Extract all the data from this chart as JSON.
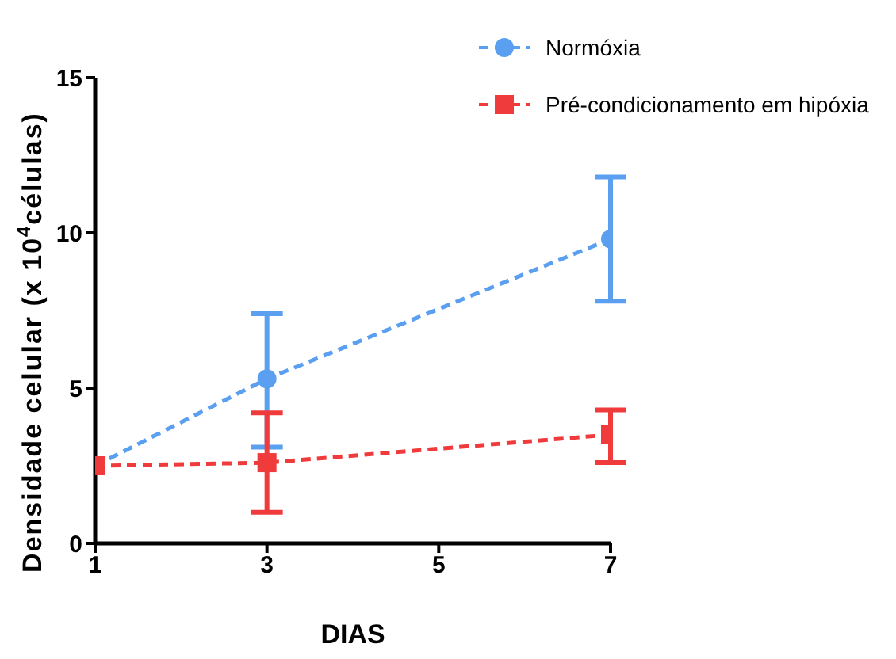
{
  "chart_data": {
    "type": "line",
    "xlabel": "DIAS",
    "ylabel": "Densidade celular (x 10$^{4}$células)",
    "x": [
      1,
      3,
      7
    ],
    "series": [
      {
        "name": "Normóxia",
        "color": "#5b9ff0",
        "marker": "circle",
        "values": [
          2.5,
          5.3,
          9.8
        ],
        "errors": [
          null,
          [
            3.1,
            7.4
          ],
          [
            7.8,
            11.8
          ]
        ]
      },
      {
        "name": "Pré-condicionamento em hipóxia",
        "color": "#ef3b3b",
        "marker": "square",
        "values": [
          2.5,
          2.6,
          3.5
        ],
        "errors": [
          null,
          [
            1.0,
            4.2
          ],
          [
            2.6,
            4.3
          ]
        ]
      }
    ],
    "xlim": [
      1,
      7
    ],
    "xticks": [
      1,
      3,
      5,
      7
    ],
    "ylim": [
      0,
      15
    ],
    "yticks": [
      0,
      5,
      10,
      15
    ],
    "line_style": "dashed",
    "legend": "top right",
    "grid": false
  }
}
